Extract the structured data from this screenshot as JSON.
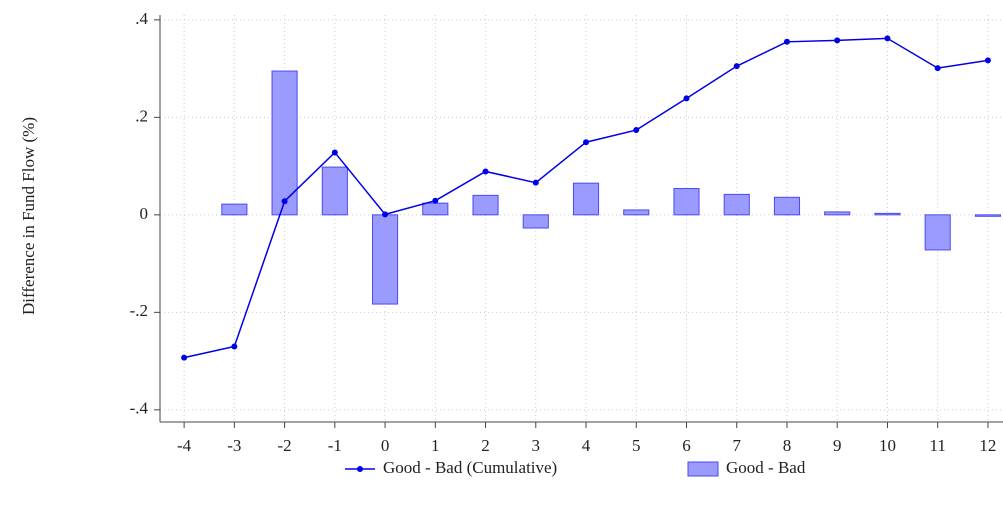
{
  "chart_data": {
    "type": "combo",
    "y_label": "Difference in Fund Flow (%)",
    "x": [
      -4,
      -3,
      -2,
      -1,
      0,
      1,
      2,
      3,
      4,
      5,
      6,
      7,
      8,
      9,
      10,
      11,
      12
    ],
    "xlim": [
      -4.48,
      12.3
    ],
    "xticks": [
      -4,
      -3,
      -2,
      -1,
      0,
      1,
      2,
      3,
      4,
      5,
      6,
      7,
      8,
      9,
      10,
      11,
      12
    ],
    "ylim": [
      -0.425,
      0.41
    ],
    "yticks": [
      {
        "value": -0.4,
        "label": "-.4"
      },
      {
        "value": -0.2,
        "label": "-.2"
      },
      0,
      {
        "value": 0.2,
        "label": ".2"
      },
      {
        "value": 0.4,
        "label": ".4"
      }
    ],
    "grid": true,
    "legend": "bottom",
    "series": [
      {
        "name": "Good - Bad (Cumulative)",
        "type": "line",
        "color": "#0000e6",
        "values": [
          -0.293,
          -0.27,
          0.028,
          0.128,
          0.001,
          0.029,
          0.089,
          0.066,
          0.149,
          0.174,
          0.239,
          0.305,
          0.355,
          0.358,
          0.362,
          0.301,
          0.317
        ]
      },
      {
        "name": "Good - Bad",
        "type": "bar",
        "color": "#9b9bff",
        "values": [
          null,
          0.022,
          0.295,
          0.098,
          -0.183,
          0.024,
          0.04,
          -0.027,
          0.065,
          0.01,
          0.054,
          0.042,
          0.036,
          0.006,
          0.003,
          -0.072,
          -0.003
        ]
      }
    ]
  }
}
